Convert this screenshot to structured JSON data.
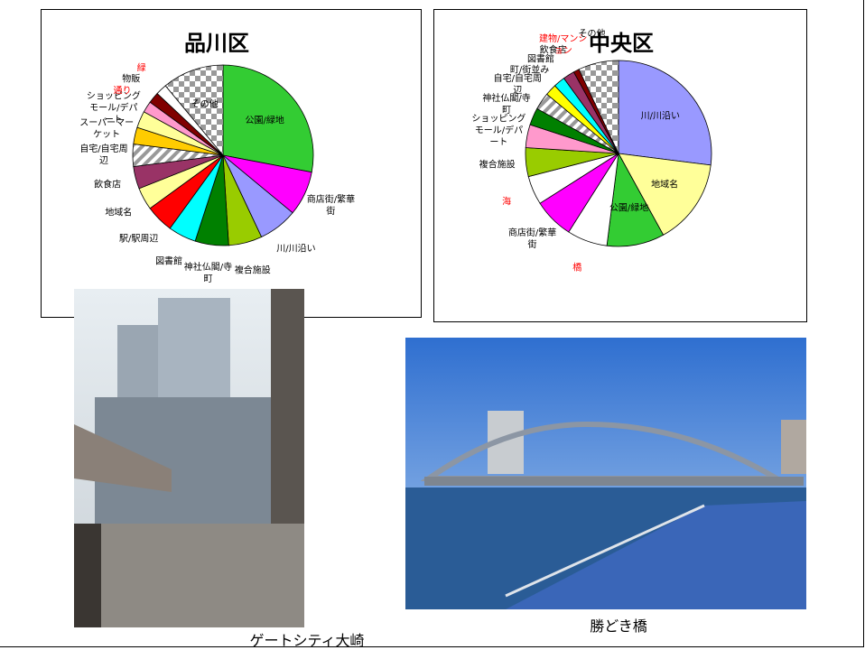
{
  "chart_data": [
    {
      "type": "pie",
      "title": "品川区",
      "categories": [
        "公園/緑地",
        "商店街/繁華街",
        "川/川沿い",
        "複合施設",
        "神社仏閣/寺町",
        "図書館",
        "駅/駅周辺",
        "地域名",
        "飲食店",
        "自宅/自宅周辺",
        "スーパーマーケット",
        "ショッピングモール/デパート",
        "通り",
        "物販",
        "緑",
        "その他"
      ],
      "values": [
        28,
        8,
        7,
        6,
        6,
        5,
        5,
        4,
        4,
        4,
        3,
        3,
        2,
        2,
        2,
        11
      ],
      "colors": [
        "#33cc33",
        "#ff00ff",
        "#9999ff",
        "#99cc00",
        "#008000",
        "#00ffff",
        "#ff0000",
        "#ffff99",
        "#993366",
        "hatch",
        "#ffcc00",
        "#ffff99",
        "#ff99cc",
        "#800000",
        "#ffffff",
        "checker"
      ],
      "label_colors": [
        "#000000",
        "#000000",
        "#000000",
        "#000000",
        "#000000",
        "#000000",
        "#000000",
        "#000000",
        "#000000",
        "#000000",
        "#000000",
        "#000000",
        "#ff0000",
        "#000000",
        "#ff0000",
        "#000000"
      ]
    },
    {
      "type": "pie",
      "title": "中央区",
      "categories": [
        "川/川沿い",
        "地域名",
        "公園/緑地",
        "橋",
        "商店街/繁華街",
        "海",
        "複合施設",
        "ショッピングモール/デパート",
        "神社仏閣/寺町",
        "自宅/自宅周辺",
        "町/街並み",
        "図書館",
        "飲食店",
        "建物/マンション",
        "その他"
      ],
      "values": [
        27,
        15,
        10,
        7,
        7,
        5,
        5,
        4,
        3,
        3,
        2,
        2,
        2,
        1,
        7
      ],
      "colors": [
        "#9999ff",
        "#ffff99",
        "#33cc33",
        "#ffffff",
        "#ff00ff",
        "#ffffff",
        "#99cc00",
        "#ff99cc",
        "#008000",
        "hatch",
        "#ffff00",
        "#00ffff",
        "#993366",
        "#800000",
        "checker"
      ],
      "label_colors": [
        "#000000",
        "#000000",
        "#000000",
        "#ff0000",
        "#000000",
        "#ff0000",
        "#000000",
        "#000000",
        "#000000",
        "#000000",
        "#000000",
        "#000000",
        "#000000",
        "#ff0000",
        "#000000"
      ]
    }
  ],
  "captions": [
    "ゲートシティ大崎",
    "勝どき橋"
  ]
}
